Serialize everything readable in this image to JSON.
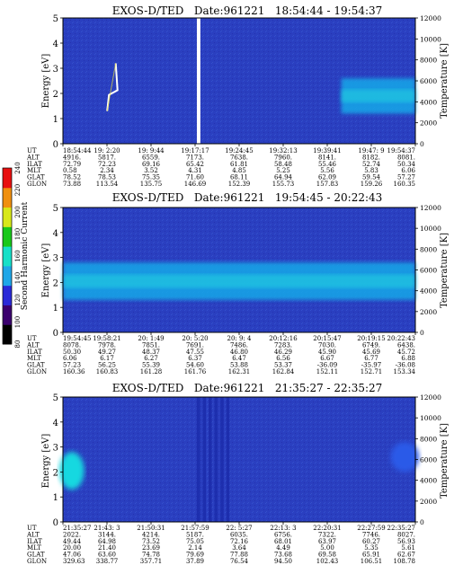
{
  "colorbar": {
    "label": "Second Harmonic Current",
    "ticks": [
      "80",
      "100",
      "120",
      "140",
      "160",
      "180",
      "200",
      "220",
      "240"
    ],
    "colors": [
      "#000000",
      "#3b006e",
      "#2a2ad8",
      "#1fa7e8",
      "#17e0c8",
      "#19c81a",
      "#d8e81a",
      "#f09010",
      "#e81010"
    ]
  },
  "chart_data": [
    {
      "type": "heatmap",
      "title": "EXOS-D/TED   Date:961221   18:54:44 - 19:54:37",
      "ylabel": "Energy [eV]",
      "ylabel_right": "Temperature [K]",
      "ylim": [
        0,
        5
      ],
      "ylim_right": [
        0,
        12000
      ],
      "yticks": [
        "0",
        "1",
        "2",
        "3",
        "4",
        "5"
      ],
      "yticks_right": [
        "0",
        "2000",
        "4000",
        "6000",
        "8000",
        "10000",
        "12000"
      ],
      "background_color": "#2a3fc0",
      "features": [
        {
          "kind": "data_gap",
          "x_frac": [
            0.38,
            0.39
          ]
        },
        {
          "kind": "streak",
          "x_frac": [
            0.1,
            0.16
          ],
          "energy": [
            1.3,
            3.2
          ],
          "color": "#ffffff"
        },
        {
          "kind": "band",
          "x_frac": [
            0.79,
            1.0
          ],
          "energy": [
            1.2,
            2.6
          ],
          "color": "#18a8e8"
        }
      ],
      "table": {
        "row_labels": [
          "UT",
          "ALT",
          "ILAT",
          "MLT",
          "GLAT",
          "GLON"
        ],
        "columns": [
          [
            "18:54:44",
            "4916.",
            "72.79",
            "0.58",
            "78.52",
            "73.88"
          ],
          [
            "19: 2:20",
            "5817.",
            "72.23",
            "2.34",
            "78.53",
            "113.54"
          ],
          [
            "19: 9:44",
            "6559.",
            "69.16",
            "3.52",
            "75.35",
            "135.75"
          ],
          [
            "19:17:17",
            "7173.",
            "65.42",
            "4.31",
            "71.60",
            "146.69"
          ],
          [
            "19:24:45",
            "7638.",
            "61.81",
            "4.85",
            "68.11",
            "152.39"
          ],
          [
            "19:32:13",
            "7960.",
            "58.48",
            "5.25",
            "64.94",
            "155.73"
          ],
          [
            "19:39:41",
            "8141.",
            "55.46",
            "5.56",
            "62.09",
            "157.83"
          ],
          [
            "19:47: 9",
            "8182.",
            "52.74",
            "5.83",
            "59.54",
            "159.26"
          ],
          [
            "19:54:37",
            "8081.",
            "50.34",
            "6.06",
            "57.27",
            "160.35"
          ]
        ]
      }
    },
    {
      "type": "heatmap",
      "title": "EXOS-D/TED   Date:961221   19:54:45 - 20:22:43",
      "ylabel": "Energy [eV]",
      "ylabel_right": "Temperature [K]",
      "ylim": [
        0,
        5
      ],
      "ylim_right": [
        0,
        12000
      ],
      "yticks": [
        "0",
        "1",
        "2",
        "3",
        "4",
        "5"
      ],
      "yticks_right": [
        "0",
        "2000",
        "4000",
        "6000",
        "8000",
        "10000",
        "12000"
      ],
      "background_color": "#2a3fc0",
      "features": [
        {
          "kind": "band",
          "x_frac": [
            0.0,
            1.0
          ],
          "energy": [
            1.3,
            2.8
          ],
          "color": "#18a8e8"
        }
      ],
      "table": {
        "row_labels": [
          "UT",
          "ALT",
          "ILAT",
          "MLT",
          "GLAT",
          "GLON"
        ],
        "columns": [
          [
            "19:54:45",
            "8078.",
            "50.30",
            "6.06",
            "57.23",
            "160.36"
          ],
          [
            "19:58:21",
            "7978.",
            "49.27",
            "6.17",
            "56.25",
            "160.83"
          ],
          [
            "20: 1:49",
            "7851.",
            "48.37",
            "6.27",
            "55.39",
            "161.28"
          ],
          [
            "20: 5:20",
            "7691.",
            "47.55",
            "6.37",
            "54.60",
            "161.76"
          ],
          [
            "20: 9: 4",
            "7486.",
            "46.80",
            "6.47",
            "53.88",
            "162.31"
          ],
          [
            "20:12:16",
            "7283.",
            "46.29",
            "6.56",
            "53.37",
            "162.84"
          ],
          [
            "20:15:47",
            "7030.",
            "45.90",
            "6.67",
            "-36.09",
            "152.11"
          ],
          [
            "20:19:15",
            "6749.",
            "45.69",
            "6.77",
            "-35.97",
            "152.71"
          ],
          [
            "20:22:43",
            "6438.",
            "45.72",
            "6.88",
            "-36.08",
            "153.34"
          ]
        ]
      }
    },
    {
      "type": "heatmap",
      "title": "EXOS-D/TED   Date:961221   21:35:27 - 22:35:27",
      "ylabel": "Energy [eV]",
      "ylabel_right": "Temperature [K]",
      "ylim": [
        0,
        5
      ],
      "ylim_right": [
        0,
        12000
      ],
      "yticks": [
        "0",
        "1",
        "2",
        "3",
        "4",
        "5"
      ],
      "yticks_right": [
        "0",
        "2000",
        "4000",
        "6000",
        "8000",
        "10000",
        "12000"
      ],
      "background_color": "#2a3fc0",
      "features": [
        {
          "kind": "blob",
          "x_frac": [
            0.0,
            0.05
          ],
          "energy": [
            1.3,
            2.8
          ],
          "color": "#18d8e0"
        },
        {
          "kind": "vertical_stripes",
          "x_frac": [
            0.38,
            0.48
          ],
          "energy": [
            0,
            5
          ],
          "color": "#1a2aa8"
        },
        {
          "kind": "blob",
          "x_frac": [
            0.94,
            1.0
          ],
          "energy": [
            2.0,
            3.2
          ],
          "color": "#2a5ae8"
        }
      ],
      "table": {
        "row_labels": [
          "UT",
          "ALT",
          "ILAT",
          "MLT",
          "GLAT",
          "GLON"
        ],
        "columns": [
          [
            "21:35:27",
            "2022.",
            "49.44",
            "20.00",
            "47.06",
            "329.63"
          ],
          [
            "21:43: 3",
            "3144.",
            "64.98",
            "21.40",
            "63.60",
            "338.77"
          ],
          [
            "21:50:31",
            "4214.",
            "73.52",
            "23.69",
            "74.78",
            "357.71"
          ],
          [
            "21:57:59",
            "5187.",
            "75.05",
            "2.14",
            "79.69",
            "37.89"
          ],
          [
            "22: 5:27",
            "6035.",
            "72.16",
            "3.64",
            "77.88",
            "76.54"
          ],
          [
            "22:13: 3",
            "6756.",
            "68.01",
            "4.49",
            "73.68",
            "94.50"
          ],
          [
            "22:20:31",
            "7322.",
            "63.97",
            "5.00",
            "69.58",
            "102.43"
          ],
          [
            "22:27:59",
            "7746.",
            "60.27",
            "5.35",
            "65.91",
            "106.51"
          ],
          [
            "22:35:27",
            "8027.",
            "56.93",
            "5.61",
            "62.67",
            "108.78"
          ]
        ]
      }
    }
  ]
}
